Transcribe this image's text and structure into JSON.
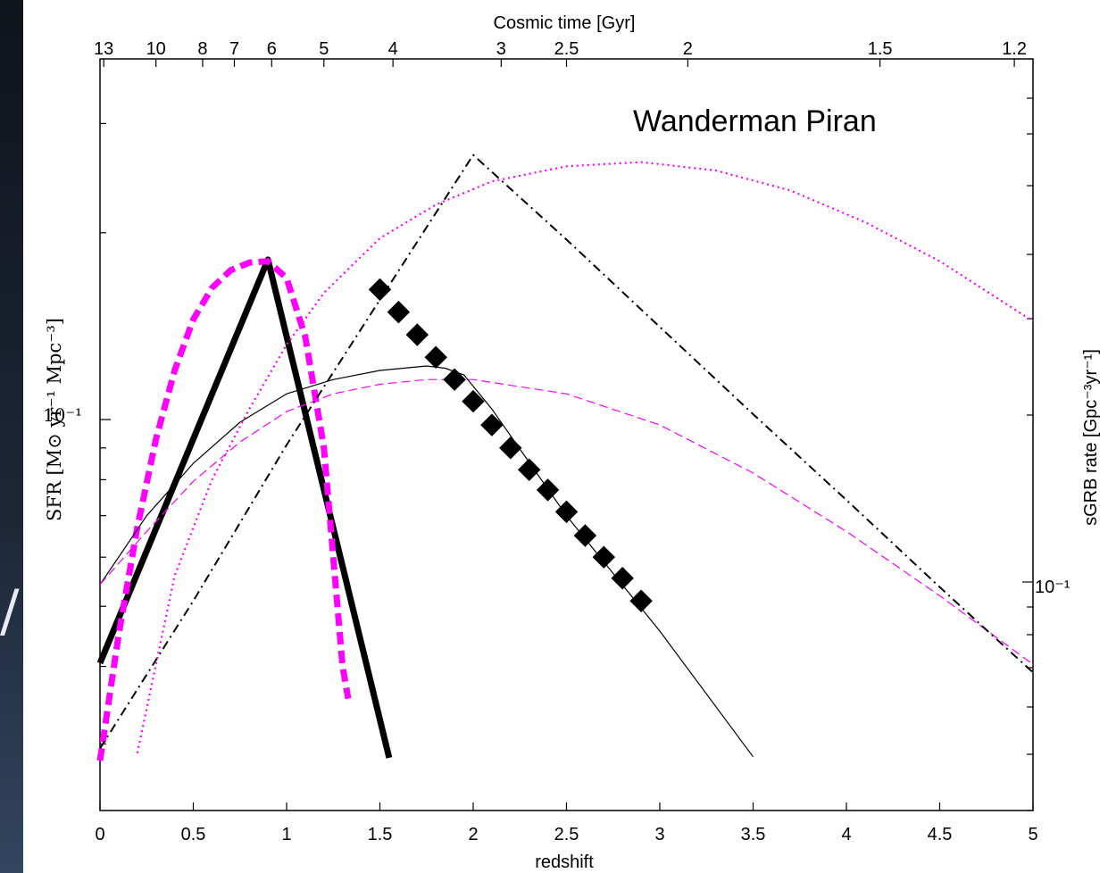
{
  "edge_glyph": "/",
  "chart_data": {
    "type": "line",
    "annotation": "Wanderman Piran",
    "xlabel": "redshift",
    "x_top_label": "Cosmic time [Gyr]",
    "ylabel_left": "SFR [M⊙ yr⁻¹ Mpc⁻³]",
    "ylabel_right": "sGRB rate [Gpc⁻³yr⁻¹]",
    "xlim": [
      0,
      5
    ],
    "y_scale": "log",
    "x_ticks": [
      "0",
      "0.5",
      "1",
      "1.5",
      "2",
      "2.5",
      "3",
      "3.5",
      "4",
      "4.5",
      "5"
    ],
    "x_tick_values": [
      0,
      0.5,
      1,
      1.5,
      2,
      2.5,
      3,
      3.5,
      4,
      4.5,
      5
    ],
    "top_ticks": [
      "13",
      "10",
      "8",
      "7",
      "6",
      "5",
      "4",
      "3",
      "2.5",
      "2",
      "1.5",
      "1.2"
    ],
    "top_tick_redshifts": [
      0.02,
      0.3,
      0.55,
      0.72,
      0.92,
      1.2,
      1.57,
      2.15,
      2.5,
      3.15,
      4.18,
      4.9
    ],
    "left_tick_label": "10⁻¹",
    "right_tick_label": "10⁻¹",
    "grid": false,
    "legend": "none",
    "series": [
      {
        "style": "thick-solid",
        "color": "#000000",
        "x": [
          0,
          0.9,
          1.55
        ],
        "y": [
          0.0405,
          0.181,
          0.0285
        ]
      },
      {
        "style": "thick-dashed",
        "color": "#ff00ff",
        "x": [
          0,
          0.1,
          0.2,
          0.3,
          0.4,
          0.5,
          0.6,
          0.7,
          0.8,
          0.9,
          1.0,
          1.1,
          1.2,
          1.3,
          1.33
        ],
        "y": [
          0.0282,
          0.045,
          0.067,
          0.093,
          0.12,
          0.145,
          0.163,
          0.174,
          0.179,
          0.18,
          0.169,
          0.136,
          0.09,
          0.04,
          0.0355
        ]
      },
      {
        "style": "thin-solid",
        "color": "#000000",
        "x": [
          0,
          0.25,
          0.5,
          0.75,
          1.0,
          1.25,
          1.5,
          1.75,
          1.85,
          1.95,
          2.1,
          2.5,
          3.0,
          3.5
        ],
        "y": [
          0.0542,
          0.07,
          0.085,
          0.099,
          0.11,
          0.116,
          0.12,
          0.122,
          0.121,
          0.118,
          0.104,
          0.07,
          0.0456,
          0.0286
        ]
      },
      {
        "style": "thin-dashed",
        "color": "#ff00ff",
        "x": [
          0,
          0.25,
          0.5,
          0.75,
          1.0,
          1.25,
          1.5,
          1.75,
          2.0,
          2.5,
          3.0,
          3.5,
          4.0,
          4.5,
          5.0
        ],
        "y": [
          0.0542,
          0.066,
          0.0795,
          0.092,
          0.103,
          0.11,
          0.114,
          0.116,
          0.116,
          0.11,
          0.098,
          0.082,
          0.066,
          0.052,
          0.0403
        ]
      },
      {
        "style": "dash-dot",
        "color": "#000000",
        "x": [
          0,
          0.5,
          1.0,
          1.5,
          2.0,
          2.5,
          3.0,
          3.5,
          4.0,
          4.5,
          5.0
        ],
        "y": [
          0.0295,
          0.051,
          0.091,
          0.156,
          0.267,
          0.195,
          0.141,
          0.102,
          0.0742,
          0.0537,
          0.0391
        ]
      },
      {
        "style": "dotted",
        "color": "#ff00ff",
        "x": [
          0.2,
          0.4,
          0.6,
          0.8,
          1.0,
          1.2,
          1.5,
          1.8,
          2.1,
          2.5,
          2.9,
          3.3,
          3.7,
          4.1,
          4.5,
          5.0
        ],
        "y": [
          0.029,
          0.056,
          0.08,
          0.104,
          0.132,
          0.16,
          0.196,
          0.222,
          0.242,
          0.256,
          0.26,
          0.252,
          0.234,
          0.208,
          0.18,
          0.144
        ]
      },
      {
        "style": "square-dots",
        "color": "#000000",
        "x": [
          1.5,
          1.6,
          1.7,
          1.8,
          1.9,
          2.0,
          2.1,
          2.2,
          2.3,
          2.4,
          2.5,
          2.6,
          2.7,
          2.8,
          2.9
        ],
        "y": [
          0.162,
          0.149,
          0.137,
          0.126,
          0.116,
          0.107,
          0.098,
          0.09,
          0.083,
          0.077,
          0.071,
          0.065,
          0.06,
          0.0555,
          0.051
        ]
      }
    ]
  }
}
